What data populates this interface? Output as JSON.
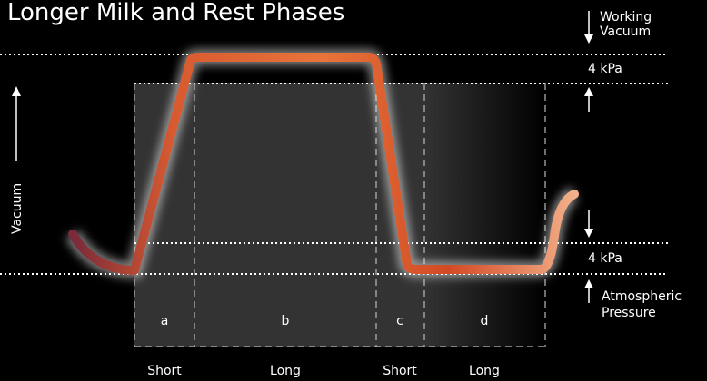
{
  "title": "Longer Milk and Rest Phases",
  "axis_label": "Vacuum",
  "right_labels": {
    "working_vacuum": [
      "Working",
      "Vacuum"
    ],
    "upper_level": "4 kPa",
    "lower_level": "4 kPa",
    "atmospheric_pressure": [
      "Atmospheric",
      "Pressure"
    ]
  },
  "phases": [
    {
      "letter": "a",
      "duration": "Short"
    },
    {
      "letter": "b",
      "duration": "Long"
    },
    {
      "letter": "c",
      "duration": "Short"
    },
    {
      "letter": "d",
      "duration": "Long"
    }
  ]
}
